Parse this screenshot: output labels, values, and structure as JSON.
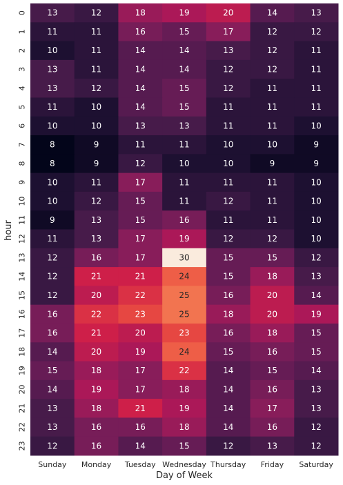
{
  "chart_data": {
    "type": "heatmap",
    "xlabel": "Day of Week",
    "ylabel": "hour",
    "x_categories": [
      "Sunday",
      "Monday",
      "Tuesday",
      "Wednesday",
      "Thursday",
      "Friday",
      "Saturday"
    ],
    "y_categories": [
      "0",
      "1",
      "2",
      "3",
      "4",
      "5",
      "6",
      "7",
      "8",
      "9",
      "10",
      "11",
      "12",
      "13",
      "14",
      "15",
      "16",
      "17",
      "18",
      "19",
      "20",
      "21",
      "22",
      "23"
    ],
    "values": [
      [
        13,
        12,
        18,
        19,
        20,
        14,
        13
      ],
      [
        11,
        11,
        16,
        15,
        17,
        12,
        12
      ],
      [
        10,
        11,
        14,
        14,
        13,
        12,
        11
      ],
      [
        13,
        11,
        14,
        14,
        12,
        12,
        11
      ],
      [
        13,
        12,
        14,
        15,
        12,
        11,
        11
      ],
      [
        11,
        10,
        14,
        15,
        11,
        11,
        11
      ],
      [
        10,
        10,
        13,
        13,
        11,
        11,
        10
      ],
      [
        8,
        9,
        11,
        11,
        10,
        10,
        9
      ],
      [
        8,
        9,
        12,
        10,
        10,
        9,
        9
      ],
      [
        10,
        11,
        17,
        11,
        11,
        11,
        10
      ],
      [
        10,
        12,
        15,
        11,
        12,
        11,
        10
      ],
      [
        9,
        13,
        15,
        16,
        11,
        11,
        10
      ],
      [
        11,
        13,
        17,
        19,
        12,
        12,
        10
      ],
      [
        12,
        16,
        17,
        30,
        15,
        15,
        12
      ],
      [
        12,
        21,
        21,
        24,
        15,
        18,
        13
      ],
      [
        12,
        20,
        22,
        25,
        16,
        20,
        14
      ],
      [
        16,
        22,
        23,
        25,
        18,
        20,
        19
      ],
      [
        16,
        21,
        20,
        23,
        16,
        18,
        15
      ],
      [
        14,
        20,
        19,
        24,
        15,
        16,
        15
      ],
      [
        15,
        18,
        17,
        22,
        14,
        15,
        14
      ],
      [
        14,
        19,
        17,
        18,
        14,
        16,
        13
      ],
      [
        13,
        18,
        21,
        19,
        14,
        17,
        13
      ],
      [
        13,
        16,
        16,
        18,
        14,
        16,
        12
      ],
      [
        12,
        16,
        14,
        15,
        12,
        13,
        12
      ]
    ],
    "colormap": "rocket",
    "vmin": 8,
    "vmax": 30,
    "annotated": true,
    "colorbar": false
  }
}
